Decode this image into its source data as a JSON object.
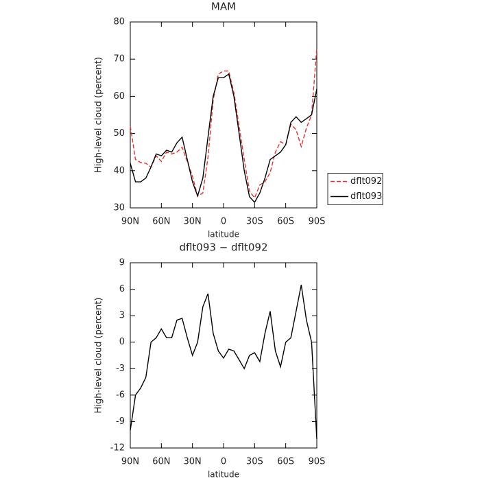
{
  "chart_data": [
    {
      "type": "line",
      "title": "MAM",
      "x_label": "latitude",
      "y_label": "High-level cloud (percent)",
      "x": [
        90,
        85,
        80,
        75,
        70,
        65,
        60,
        55,
        50,
        45,
        40,
        35,
        30,
        25,
        20,
        15,
        10,
        5,
        0,
        -5,
        -10,
        -15,
        -20,
        -25,
        -30,
        -35,
        -40,
        -45,
        -50,
        -55,
        -60,
        -65,
        -70,
        -75,
        -80,
        -85,
        -90
      ],
      "series": [
        {
          "name": "dflt092",
          "color": "#e8312a",
          "line_style": "dashed",
          "values": [
            52,
            43,
            42.2,
            42,
            41,
            44,
            42.5,
            45,
            44.5,
            45,
            46.3,
            42.5,
            38.5,
            33.2,
            34,
            43.5,
            59,
            66,
            66.8,
            66.8,
            61,
            52,
            43,
            34.5,
            32.7,
            36.2,
            37,
            39.5,
            45,
            47.8,
            47,
            52.5,
            51,
            46.5,
            51.5,
            55,
            73
          ]
        },
        {
          "name": "dflt093",
          "color": "#000000",
          "line_style": "solid",
          "values": [
            42,
            37,
            37,
            38,
            41,
            44.5,
            44,
            45.5,
            45,
            47.5,
            49,
            43,
            37,
            33.2,
            38,
            49,
            60,
            65,
            65,
            66,
            60,
            50,
            40,
            33,
            31.5,
            34,
            38,
            43,
            44,
            45,
            47,
            53,
            54.5,
            53,
            54,
            55,
            62
          ]
        }
      ],
      "xlim": [
        90,
        -90
      ],
      "xticks": [
        {
          "value": 90,
          "label": "90N"
        },
        {
          "value": 60,
          "label": "60N"
        },
        {
          "value": 30,
          "label": "30N"
        },
        0,
        {
          "value": -30,
          "label": "30S"
        },
        {
          "value": -60,
          "label": "60S"
        },
        {
          "value": -90,
          "label": "90S"
        }
      ],
      "ylim": [
        30,
        80
      ],
      "yticks": [
        30,
        40,
        50,
        60,
        70,
        80
      ],
      "legend": "right"
    },
    {
      "type": "line",
      "title": "dflt093 − dflt092",
      "x_label": "latitude",
      "y_label": "High-level cloud (percent)",
      "x": [
        90,
        85,
        80,
        75,
        70,
        65,
        60,
        55,
        50,
        45,
        40,
        35,
        30,
        25,
        20,
        15,
        10,
        5,
        0,
        -5,
        -10,
        -15,
        -20,
        -25,
        -30,
        -35,
        -40,
        -45,
        -50,
        -55,
        -60,
        -65,
        -70,
        -75,
        -80,
        -85,
        -90
      ],
      "color": "#000000",
      "values": [
        -10,
        -6,
        -5.2,
        -4,
        0,
        0.5,
        1.5,
        0.5,
        0.5,
        2.5,
        2.7,
        0.5,
        -1.5,
        0,
        4,
        5.5,
        1,
        -1,
        -1.8,
        -0.8,
        -1,
        -2,
        -3,
        -1.5,
        -1.2,
        -2.2,
        1,
        3.5,
        -1,
        -2.8,
        0,
        0.5,
        3.5,
        6.5,
        2.5,
        0,
        -11
      ],
      "xlim": [
        90,
        -90
      ],
      "xticks": [
        {
          "value": 90,
          "label": "90N"
        },
        {
          "value": 60,
          "label": "60N"
        },
        {
          "value": 30,
          "label": "30N"
        },
        0,
        {
          "value": -30,
          "label": "30S"
        },
        {
          "value": -60,
          "label": "60S"
        },
        {
          "value": -90,
          "label": "90S"
        }
      ],
      "ylim": [
        -12,
        9
      ],
      "yticks": [
        -12,
        -9,
        -6,
        -3,
        0,
        3,
        6,
        9
      ]
    }
  ]
}
